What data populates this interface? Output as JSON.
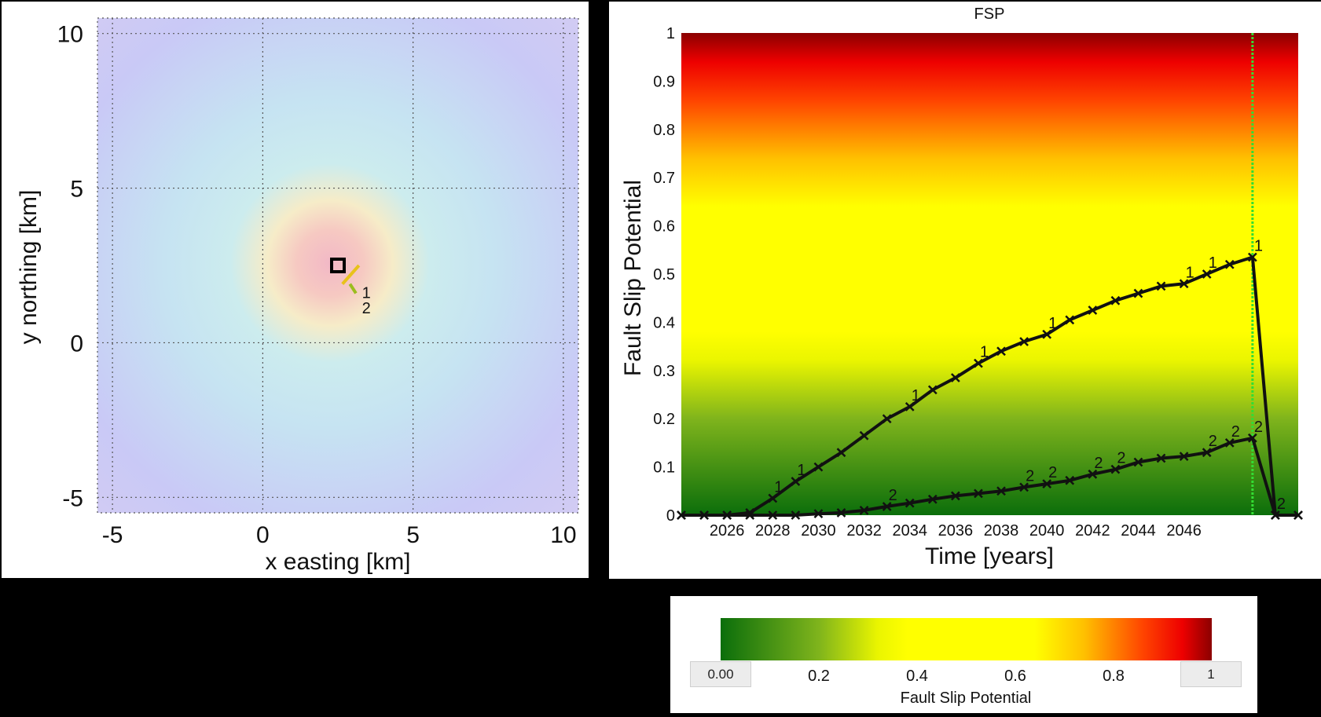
{
  "colors": {
    "green": "#0b6e0b",
    "yellow": "#ffff00",
    "red": "#ff0000",
    "darkred": "#8b0000",
    "curve": "#111111",
    "now_line": "#33dd33"
  },
  "chart_data": [
    {
      "type": "scatter",
      "name": "map",
      "xlabel": "x easting [km]",
      "ylabel": "y northing [km]",
      "xlim": [
        -5.5,
        10.5
      ],
      "ylim": [
        -5.5,
        10.5
      ],
      "xticks": [
        "-5",
        "0",
        "5",
        "10"
      ],
      "yticks": [
        "-5",
        "0",
        "5",
        "10"
      ],
      "grid": true,
      "well": {
        "x": 2.5,
        "y": 2.5
      },
      "faults": [
        {
          "label": "1",
          "x": [
            2.65,
            3.2
          ],
          "y": [
            1.9,
            2.5
          ],
          "color": "#e8c21a"
        },
        {
          "label": "2",
          "x": [
            2.9,
            3.1
          ],
          "y": [
            1.9,
            1.6
          ],
          "color": "#9bbd1e"
        }
      ],
      "fault_labels": [
        {
          "text": "1",
          "x": 3.3,
          "y": 1.45
        },
        {
          "text": "2",
          "x": 3.3,
          "y": 0.95
        }
      ]
    },
    {
      "type": "line",
      "name": "fsp",
      "title": "FSP",
      "xlabel": "Time [years]",
      "ylabel": "Fault Slip Potential",
      "xlim": [
        2024,
        2051
      ],
      "ylim": [
        0,
        1
      ],
      "yticks": [
        "0",
        "0.1",
        "0.2",
        "0.3",
        "0.4",
        "0.5",
        "0.6",
        "0.7",
        "0.8",
        "0.9",
        "1"
      ],
      "xticks": [
        "2026",
        "2028",
        "2030",
        "2032",
        "2034",
        "2036",
        "2038",
        "2040",
        "2042",
        "2044",
        "2046"
      ],
      "current_year": 2049,
      "x": [
        2024,
        2025,
        2026,
        2027,
        2028,
        2029,
        2030,
        2031,
        2032,
        2033,
        2034,
        2035,
        2036,
        2037,
        2038,
        2039,
        2040,
        2041,
        2042,
        2043,
        2044,
        2045,
        2046,
        2047,
        2048,
        2049,
        2050,
        2051
      ],
      "series": [
        {
          "name": "1",
          "values": [
            0,
            0,
            0,
            0.005,
            0.035,
            0.07,
            0.1,
            0.13,
            0.165,
            0.2,
            0.225,
            0.26,
            0.285,
            0.315,
            0.34,
            0.36,
            0.375,
            0.405,
            0.425,
            0.445,
            0.46,
            0.475,
            0.48,
            0.5,
            0.52,
            0.535,
            0,
            0
          ]
        },
        {
          "name": "2",
          "values": [
            0,
            0,
            0,
            0,
            0,
            0,
            0.003,
            0.005,
            0.01,
            0.018,
            0.025,
            0.033,
            0.04,
            0.045,
            0.05,
            0.058,
            0.065,
            0.072,
            0.085,
            0.095,
            0.11,
            0.118,
            0.122,
            0.13,
            0.15,
            0.16,
            0,
            0
          ]
        }
      ],
      "point_labels": {
        "1": [
          2028,
          2029,
          2034,
          2037,
          2040,
          2046,
          2047,
          2049
        ],
        "2": [
          2033,
          2039,
          2040,
          2042,
          2043,
          2047,
          2048,
          2049,
          2050
        ]
      }
    }
  ],
  "colorbar": {
    "label": "Fault Slip Potential",
    "min_box": "0.00",
    "max_box": "1",
    "ticks": [
      "0.2",
      "0.4",
      "0.6",
      "0.8"
    ]
  }
}
